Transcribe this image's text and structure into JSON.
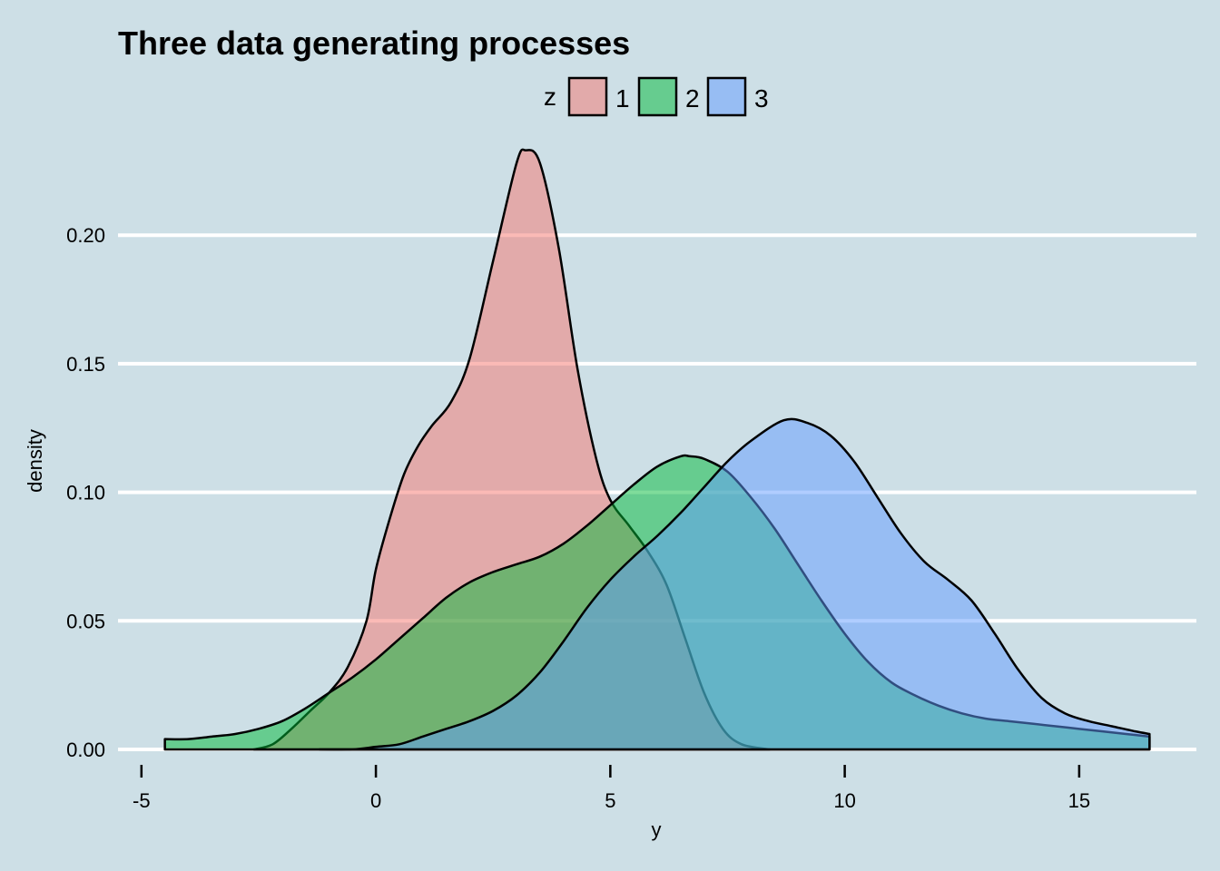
{
  "chart_data": {
    "type": "area",
    "title": "Three data generating processes",
    "xlabel": "y",
    "ylabel": "density",
    "xlim": [
      -5.5,
      17.5
    ],
    "ylim": [
      0,
      0.235
    ],
    "xticks": [
      -5,
      0,
      5,
      10,
      15
    ],
    "yticks": [
      0.0,
      0.05,
      0.1,
      0.15,
      0.2
    ],
    "xtick_labels": [
      "-5",
      "0",
      "5",
      "10",
      "15"
    ],
    "ytick_labels": [
      "0.00",
      "0.05",
      "0.10",
      "0.15",
      "0.20"
    ],
    "grid": "horizontal",
    "legend": {
      "title": "z",
      "position": "top"
    },
    "series": [
      {
        "name": "1",
        "color": "#f8766d",
        "x": [
          -2.6,
          -2.2,
          -1.8,
          -1.4,
          -1.0,
          -0.6,
          -0.2,
          0.0,
          0.3,
          0.6,
          0.9,
          1.2,
          1.6,
          2.0,
          2.5,
          3.0,
          3.2,
          3.5,
          3.9,
          4.3,
          4.7,
          5.0,
          5.4,
          5.8,
          6.2,
          6.6,
          7.0,
          7.4,
          7.8,
          8.4
        ],
        "y": [
          0.0,
          0.002,
          0.008,
          0.015,
          0.022,
          0.032,
          0.05,
          0.07,
          0.09,
          0.107,
          0.118,
          0.126,
          0.135,
          0.152,
          0.19,
          0.228,
          0.233,
          0.228,
          0.195,
          0.148,
          0.113,
          0.097,
          0.087,
          0.077,
          0.064,
          0.043,
          0.022,
          0.008,
          0.002,
          0.0
        ]
      },
      {
        "name": "2",
        "color": "#00ba38",
        "x": [
          -4.5,
          -4.0,
          -3.5,
          -3.0,
          -2.5,
          -2.0,
          -1.5,
          -1.0,
          -0.5,
          0.0,
          0.5,
          1.0,
          1.5,
          2.0,
          2.5,
          3.0,
          3.5,
          4.0,
          4.5,
          5.0,
          5.5,
          6.0,
          6.5,
          6.7,
          7.0,
          7.5,
          8.0,
          8.5,
          9.0,
          9.5,
          10.0,
          10.5,
          11.0,
          11.5,
          12.0,
          12.5,
          13.0,
          13.5,
          14.0,
          14.5,
          15.0,
          15.5,
          16.0,
          16.5
        ],
        "y": [
          0.004,
          0.004,
          0.005,
          0.006,
          0.008,
          0.011,
          0.016,
          0.022,
          0.028,
          0.035,
          0.043,
          0.051,
          0.059,
          0.065,
          0.069,
          0.072,
          0.075,
          0.08,
          0.087,
          0.095,
          0.103,
          0.11,
          0.114,
          0.114,
          0.113,
          0.108,
          0.098,
          0.086,
          0.072,
          0.058,
          0.045,
          0.034,
          0.026,
          0.021,
          0.017,
          0.014,
          0.012,
          0.011,
          0.01,
          0.009,
          0.008,
          0.007,
          0.006,
          0.005
        ]
      },
      {
        "name": "3",
        "color": "#619cff",
        "x": [
          -1.2,
          -0.5,
          0.0,
          0.5,
          1.0,
          1.5,
          2.0,
          2.5,
          3.0,
          3.5,
          4.0,
          4.5,
          5.0,
          5.5,
          6.0,
          6.5,
          7.0,
          7.5,
          8.0,
          8.7,
          9.2,
          9.7,
          10.2,
          10.7,
          11.2,
          11.7,
          12.2,
          12.7,
          13.2,
          13.7,
          14.2,
          14.7,
          15.2,
          15.7,
          16.2,
          16.5
        ],
        "y": [
          0.0,
          0.0,
          0.001,
          0.002,
          0.005,
          0.008,
          0.011,
          0.015,
          0.021,
          0.03,
          0.042,
          0.055,
          0.066,
          0.075,
          0.083,
          0.092,
          0.102,
          0.112,
          0.12,
          0.128,
          0.127,
          0.122,
          0.112,
          0.098,
          0.084,
          0.073,
          0.066,
          0.058,
          0.045,
          0.031,
          0.02,
          0.014,
          0.011,
          0.009,
          0.007,
          0.006
        ]
      }
    ]
  }
}
